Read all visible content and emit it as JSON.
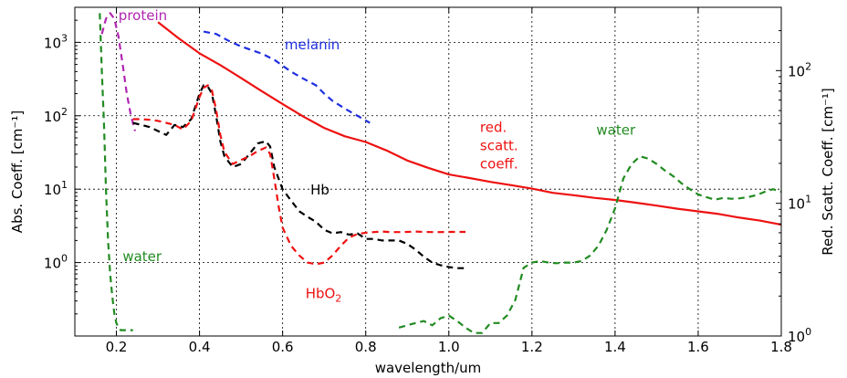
{
  "chart_data": {
    "type": "line",
    "xlabel": "wavelength/um",
    "ylabel_left": "Abs. Coeff. [cm⁻¹]",
    "ylabel_right": "Red. Scatt. Coeff. [cm⁻¹]",
    "x_range": [
      0.1,
      1.8
    ],
    "y_left_range": [
      0.1,
      3000
    ],
    "y_left_scale": "log",
    "y_right_range": [
      1,
      300
    ],
    "y_right_scale": "log",
    "grid": true,
    "x_ticks": [
      {
        "value": 0.2,
        "label": "0.2"
      },
      {
        "value": 0.4,
        "label": "0.4"
      },
      {
        "value": 0.6,
        "label": "0.6"
      },
      {
        "value": 0.8,
        "label": "0.8"
      },
      {
        "value": 1.0,
        "label": "1.0"
      },
      {
        "value": 1.2,
        "label": "1.2"
      },
      {
        "value": 1.4,
        "label": "1.4"
      },
      {
        "value": 1.6,
        "label": "1.6"
      },
      {
        "value": 1.8,
        "label": "1.8"
      }
    ],
    "y_left_ticks": [
      {
        "value": 1,
        "base": "10",
        "exp": "0"
      },
      {
        "value": 10,
        "base": "10",
        "exp": "1"
      },
      {
        "value": 100,
        "base": "10",
        "exp": "2"
      },
      {
        "value": 1000,
        "base": "10",
        "exp": "3"
      }
    ],
    "y_right_ticks": [
      {
        "value": 1,
        "base": "10",
        "exp": "0"
      },
      {
        "value": 10,
        "base": "10",
        "exp": "1"
      },
      {
        "value": 100,
        "base": "10",
        "exp": "2"
      }
    ],
    "series": [
      {
        "name": "red. scatt. coeff.",
        "axis": "right",
        "color": "#ee1111",
        "dash": "solid",
        "label_lines": [
          "red.",
          "scatt.",
          "coeff."
        ],
        "x": [
          0.3,
          0.35,
          0.4,
          0.45,
          0.5,
          0.55,
          0.6,
          0.65,
          0.7,
          0.75,
          0.8,
          0.85,
          0.9,
          0.95,
          1.0,
          1.05,
          1.1,
          1.15,
          1.2,
          1.25,
          1.3,
          1.35,
          1.4,
          1.45,
          1.5,
          1.55,
          1.6,
          1.65,
          1.7,
          1.75,
          1.8
        ],
        "y": [
          232,
          175,
          135,
          110,
          88,
          70,
          56,
          45,
          37,
          32,
          29,
          25,
          21,
          18.5,
          16.5,
          15.5,
          14.5,
          13.7,
          12.9,
          12.0,
          11.5,
          11.0,
          10.6,
          10.1,
          9.6,
          9.1,
          8.7,
          8.3,
          7.8,
          7.4,
          6.9
        ]
      },
      {
        "name": "melanin",
        "axis": "left",
        "color": "#1f2fe0",
        "dash": "dashed",
        "x": [
          0.41,
          0.44,
          0.47,
          0.5,
          0.55,
          0.58,
          0.6,
          0.62,
          0.65,
          0.68,
          0.7,
          0.72,
          0.75,
          0.78,
          0.81
        ],
        "y": [
          1400,
          1300,
          1050,
          880,
          700,
          580,
          480,
          400,
          320,
          260,
          200,
          160,
          125,
          100,
          80
        ]
      },
      {
        "name": "protein",
        "axis": "left",
        "color": "#b026b0",
        "dash": "dashed",
        "x": [
          0.165,
          0.175,
          0.185,
          0.195,
          0.205,
          0.215,
          0.225,
          0.235,
          0.245
        ],
        "y": [
          1300,
          2100,
          2500,
          2100,
          1200,
          500,
          200,
          100,
          62
        ]
      },
      {
        "name": "Hb",
        "axis": "left",
        "color": "#000000",
        "dash": "dashed",
        "x": [
          0.24,
          0.26,
          0.28,
          0.3,
          0.32,
          0.34,
          0.36,
          0.38,
          0.4,
          0.41,
          0.42,
          0.43,
          0.44,
          0.45,
          0.46,
          0.48,
          0.5,
          0.52,
          0.54,
          0.56,
          0.57,
          0.58,
          0.6,
          0.62,
          0.64,
          0.66,
          0.68,
          0.7,
          0.72,
          0.74,
          0.76,
          0.78,
          0.8,
          0.82,
          0.84,
          0.86,
          0.88,
          0.9,
          0.92,
          0.94,
          0.96,
          0.98,
          1.0,
          1.02,
          1.04
        ],
        "y": [
          80,
          75,
          70,
          62,
          55,
          75,
          70,
          90,
          200,
          260,
          250,
          200,
          100,
          45,
          28,
          20,
          22,
          30,
          42,
          45,
          38,
          20,
          10,
          7,
          5,
          4.2,
          3.6,
          2.8,
          2.5,
          2.6,
          2.4,
          2.5,
          2.1,
          2.1,
          2.0,
          2.0,
          2.0,
          1.8,
          1.5,
          1.2,
          1.0,
          0.92,
          0.87,
          0.84,
          0.84
        ]
      },
      {
        "name": "HbO₂",
        "axis": "left",
        "color": "#ee1111",
        "dash": "dashed",
        "label_base": "HbO",
        "label_sub": "2",
        "x": [
          0.24,
          0.26,
          0.28,
          0.3,
          0.32,
          0.34,
          0.36,
          0.38,
          0.4,
          0.41,
          0.42,
          0.43,
          0.44,
          0.45,
          0.46,
          0.48,
          0.5,
          0.52,
          0.54,
          0.56,
          0.57,
          0.58,
          0.59,
          0.6,
          0.62,
          0.64,
          0.66,
          0.68,
          0.7,
          0.72,
          0.74,
          0.76,
          0.78,
          0.8,
          0.82,
          0.84,
          0.86,
          0.88,
          0.9,
          0.92,
          0.94,
          0.96,
          0.98,
          1.0,
          1.02,
          1.04
        ],
        "y": [
          90,
          90,
          88,
          85,
          80,
          75,
          65,
          85,
          180,
          240,
          260,
          220,
          120,
          55,
          32,
          22,
          25,
          28,
          33,
          37,
          30,
          14,
          6,
          3.0,
          1.7,
          1.25,
          1.0,
          0.95,
          1.0,
          1.25,
          1.7,
          2.2,
          2.45,
          2.55,
          2.6,
          2.65,
          2.6,
          2.6,
          2.62,
          2.65,
          2.62,
          2.6,
          2.6,
          2.62,
          2.62,
          2.62
        ]
      },
      {
        "name": "water",
        "axis": "left",
        "color": "#228b22",
        "dash": "dashed",
        "label_positions": [
          "left",
          "right"
        ],
        "segments": [
          {
            "x": [
              0.16,
              0.165,
              0.17,
              0.175,
              0.18,
              0.185,
              0.19,
              0.195,
              0.2,
              0.205,
              0.21,
              0.22,
              0.23,
              0.24
            ],
            "y": [
              2500,
              400,
              80,
              10,
              2.0,
              0.7,
              0.35,
              0.2,
              0.15,
              0.13,
              0.12,
              0.12,
              0.12,
              0.12
            ]
          },
          {
            "x": [
              0.88,
              0.9,
              0.92,
              0.94,
              0.96,
              0.98,
              1.0,
              1.02,
              1.04,
              1.06,
              1.08,
              1.1,
              1.12,
              1.14,
              1.16,
              1.18,
              1.2,
              1.22,
              1.24,
              1.26,
              1.28,
              1.3,
              1.32,
              1.34,
              1.36,
              1.38,
              1.4,
              1.42,
              1.44,
              1.46,
              1.48,
              1.5,
              1.52,
              1.54,
              1.56,
              1.58,
              1.6,
              1.62,
              1.64,
              1.66,
              1.68,
              1.7,
              1.72,
              1.74,
              1.76,
              1.78,
              1.8
            ],
            "y": [
              0.13,
              0.14,
              0.15,
              0.16,
              0.14,
              0.175,
              0.19,
              0.16,
              0.13,
              0.11,
              0.11,
              0.15,
              0.15,
              0.19,
              0.31,
              0.85,
              1.0,
              1.05,
              1.0,
              0.98,
              1.0,
              1.0,
              1.05,
              1.25,
              1.7,
              2.8,
              5.5,
              14,
              22,
              28,
              26,
              22,
              18,
              15,
              12,
              10,
              8.5,
              7.8,
              7.2,
              7.6,
              7.4,
              7.5,
              7.8,
              8.3,
              9.2,
              10,
              9.2
            ]
          }
        ]
      }
    ]
  }
}
